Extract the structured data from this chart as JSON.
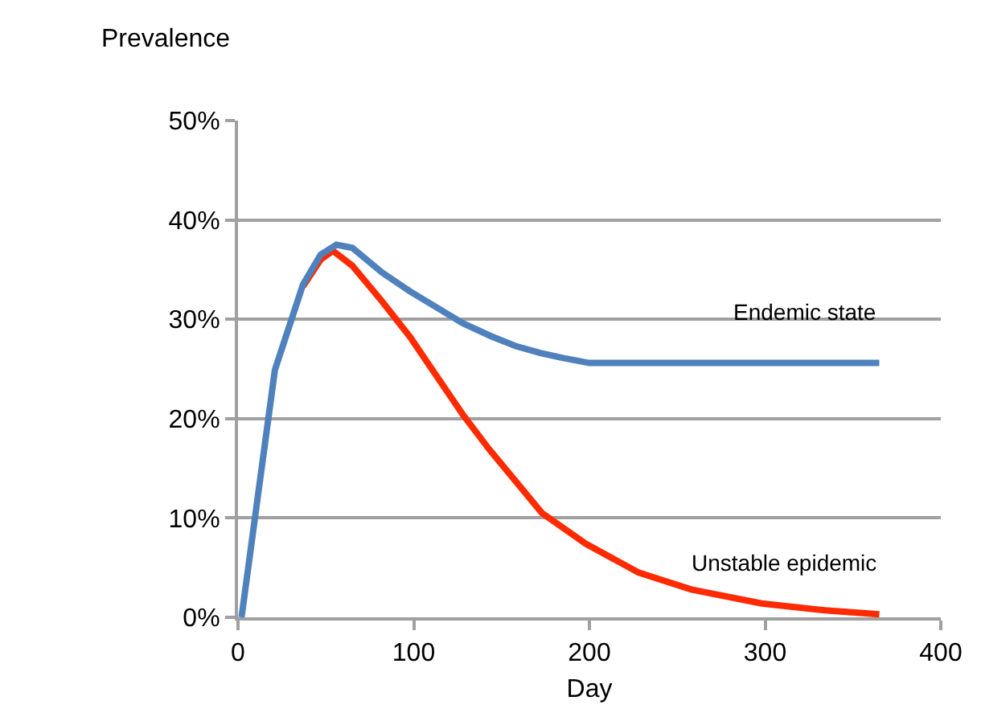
{
  "chart_data": {
    "type": "line",
    "xlabel": "Day",
    "ylabel": "Prevalence",
    "xlim": [
      0,
      400
    ],
    "xticks": [
      0,
      100,
      200,
      300,
      400
    ],
    "ylim": [
      0,
      50
    ],
    "yticks": [
      {
        "value": 0,
        "label": "0%"
      },
      {
        "value": 10,
        "label": "10%"
      },
      {
        "value": 20,
        "label": "20%"
      },
      {
        "value": 30,
        "label": "30%"
      },
      {
        "value": 40,
        "label": "40%"
      },
      {
        "value": 50,
        "label": "50%"
      }
    ],
    "grid": "y",
    "legend": false,
    "marker": "none",
    "line_style": "solid",
    "series": [
      {
        "name": "Unstable epidemic",
        "color": "#ff2a00",
        "x": [
          37,
          47,
          54,
          65,
          82,
          98,
          113,
          128,
          143,
          158,
          173,
          198,
          228,
          258,
          298,
          334,
          365
        ],
        "values": [
          33.3,
          36.0,
          36.9,
          35.4,
          31.8,
          28.2,
          24.3,
          20.4,
          16.9,
          13.7,
          10.5,
          7.4,
          4.5,
          2.8,
          1.4,
          0.7,
          0.3
        ]
      },
      {
        "name": "Endemic state",
        "color": "#4f81bd",
        "x": [
          2,
          10,
          21,
          37,
          47,
          56,
          65,
          82,
          98,
          113,
          128,
          144,
          158,
          172,
          185,
          200,
          250,
          300,
          365
        ],
        "values": [
          0,
          10.5,
          24.9,
          33.5,
          36.5,
          37.5,
          37.2,
          34.7,
          32.8,
          31.2,
          29.6,
          28.3,
          27.3,
          26.6,
          26.1,
          25.6,
          25.6,
          25.6,
          25.6
        ]
      }
    ]
  }
}
